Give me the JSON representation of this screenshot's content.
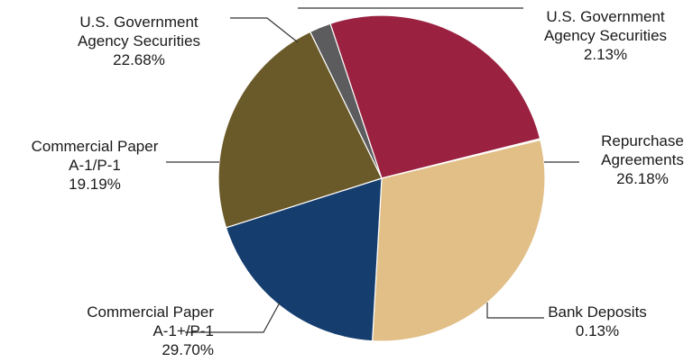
{
  "chart_data": {
    "type": "pie",
    "title": "",
    "legend": "none",
    "start_angle_deg": 334,
    "slices": [
      {
        "label": [
          "U.S. Government",
          "Agency Securities"
        ],
        "value": 2.13,
        "value_label": "2.13%",
        "color": "#5c5c5e"
      },
      {
        "label": [
          "Repurchase",
          "Agreements"
        ],
        "value": 26.18,
        "value_label": "26.18%",
        "color": "#9a2140"
      },
      {
        "label": [
          "Bank Deposits"
        ],
        "value": 0.13,
        "value_label": "0.13%",
        "color": "#c8c8c8"
      },
      {
        "label": [
          "Commercial Paper",
          "A-1+/P-1"
        ],
        "value": 29.7,
        "value_label": "29.70%",
        "color": "#e1bf87"
      },
      {
        "label": [
          "Commercial Paper",
          "A-1/P-1"
        ],
        "value": 19.19,
        "value_label": "19.19%",
        "color": "#153d6e"
      },
      {
        "label": [
          "U.S. Government",
          "Agency Securities"
        ],
        "value": 22.68,
        "value_label": "22.68%",
        "color": "#6b5a29"
      }
    ]
  }
}
